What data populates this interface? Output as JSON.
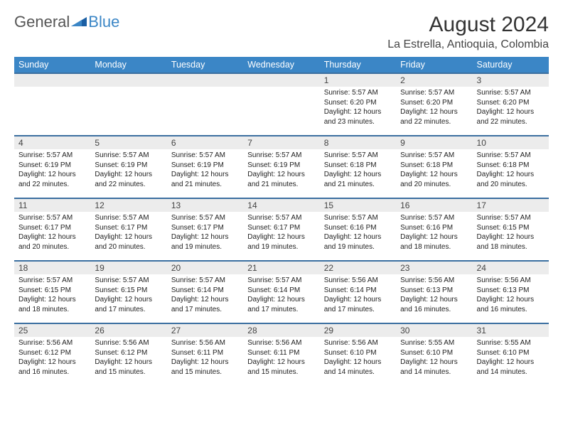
{
  "logo": {
    "general": "General",
    "blue": "Blue"
  },
  "title": "August 2024",
  "location": "La Estrella, Antioquia, Colombia",
  "colors": {
    "header_bg": "#3b86c6",
    "header_text": "#ffffff",
    "daynum_bg": "#ececec",
    "row_border": "#3b6fa0",
    "logo_gray": "#555555",
    "logo_blue": "#3b86c6",
    "body_text": "#222222"
  },
  "typography": {
    "month_title_size": 30,
    "location_size": 16,
    "header_cell_size": 12.5,
    "daynum_size": 12,
    "body_size": 10
  },
  "day_headers": [
    "Sunday",
    "Monday",
    "Tuesday",
    "Wednesday",
    "Thursday",
    "Friday",
    "Saturday"
  ],
  "weeks": [
    [
      null,
      null,
      null,
      null,
      {
        "n": "1",
        "sunrise": "Sunrise: 5:57 AM",
        "sunset": "Sunset: 6:20 PM",
        "daylight": "Daylight: 12 hours and 23 minutes."
      },
      {
        "n": "2",
        "sunrise": "Sunrise: 5:57 AM",
        "sunset": "Sunset: 6:20 PM",
        "daylight": "Daylight: 12 hours and 22 minutes."
      },
      {
        "n": "3",
        "sunrise": "Sunrise: 5:57 AM",
        "sunset": "Sunset: 6:20 PM",
        "daylight": "Daylight: 12 hours and 22 minutes."
      }
    ],
    [
      {
        "n": "4",
        "sunrise": "Sunrise: 5:57 AM",
        "sunset": "Sunset: 6:19 PM",
        "daylight": "Daylight: 12 hours and 22 minutes."
      },
      {
        "n": "5",
        "sunrise": "Sunrise: 5:57 AM",
        "sunset": "Sunset: 6:19 PM",
        "daylight": "Daylight: 12 hours and 22 minutes."
      },
      {
        "n": "6",
        "sunrise": "Sunrise: 5:57 AM",
        "sunset": "Sunset: 6:19 PM",
        "daylight": "Daylight: 12 hours and 21 minutes."
      },
      {
        "n": "7",
        "sunrise": "Sunrise: 5:57 AM",
        "sunset": "Sunset: 6:19 PM",
        "daylight": "Daylight: 12 hours and 21 minutes."
      },
      {
        "n": "8",
        "sunrise": "Sunrise: 5:57 AM",
        "sunset": "Sunset: 6:18 PM",
        "daylight": "Daylight: 12 hours and 21 minutes."
      },
      {
        "n": "9",
        "sunrise": "Sunrise: 5:57 AM",
        "sunset": "Sunset: 6:18 PM",
        "daylight": "Daylight: 12 hours and 20 minutes."
      },
      {
        "n": "10",
        "sunrise": "Sunrise: 5:57 AM",
        "sunset": "Sunset: 6:18 PM",
        "daylight": "Daylight: 12 hours and 20 minutes."
      }
    ],
    [
      {
        "n": "11",
        "sunrise": "Sunrise: 5:57 AM",
        "sunset": "Sunset: 6:17 PM",
        "daylight": "Daylight: 12 hours and 20 minutes."
      },
      {
        "n": "12",
        "sunrise": "Sunrise: 5:57 AM",
        "sunset": "Sunset: 6:17 PM",
        "daylight": "Daylight: 12 hours and 20 minutes."
      },
      {
        "n": "13",
        "sunrise": "Sunrise: 5:57 AM",
        "sunset": "Sunset: 6:17 PM",
        "daylight": "Daylight: 12 hours and 19 minutes."
      },
      {
        "n": "14",
        "sunrise": "Sunrise: 5:57 AM",
        "sunset": "Sunset: 6:17 PM",
        "daylight": "Daylight: 12 hours and 19 minutes."
      },
      {
        "n": "15",
        "sunrise": "Sunrise: 5:57 AM",
        "sunset": "Sunset: 6:16 PM",
        "daylight": "Daylight: 12 hours and 19 minutes."
      },
      {
        "n": "16",
        "sunrise": "Sunrise: 5:57 AM",
        "sunset": "Sunset: 6:16 PM",
        "daylight": "Daylight: 12 hours and 18 minutes."
      },
      {
        "n": "17",
        "sunrise": "Sunrise: 5:57 AM",
        "sunset": "Sunset: 6:15 PM",
        "daylight": "Daylight: 12 hours and 18 minutes."
      }
    ],
    [
      {
        "n": "18",
        "sunrise": "Sunrise: 5:57 AM",
        "sunset": "Sunset: 6:15 PM",
        "daylight": "Daylight: 12 hours and 18 minutes."
      },
      {
        "n": "19",
        "sunrise": "Sunrise: 5:57 AM",
        "sunset": "Sunset: 6:15 PM",
        "daylight": "Daylight: 12 hours and 17 minutes."
      },
      {
        "n": "20",
        "sunrise": "Sunrise: 5:57 AM",
        "sunset": "Sunset: 6:14 PM",
        "daylight": "Daylight: 12 hours and 17 minutes."
      },
      {
        "n": "21",
        "sunrise": "Sunrise: 5:57 AM",
        "sunset": "Sunset: 6:14 PM",
        "daylight": "Daylight: 12 hours and 17 minutes."
      },
      {
        "n": "22",
        "sunrise": "Sunrise: 5:56 AM",
        "sunset": "Sunset: 6:14 PM",
        "daylight": "Daylight: 12 hours and 17 minutes."
      },
      {
        "n": "23",
        "sunrise": "Sunrise: 5:56 AM",
        "sunset": "Sunset: 6:13 PM",
        "daylight": "Daylight: 12 hours and 16 minutes."
      },
      {
        "n": "24",
        "sunrise": "Sunrise: 5:56 AM",
        "sunset": "Sunset: 6:13 PM",
        "daylight": "Daylight: 12 hours and 16 minutes."
      }
    ],
    [
      {
        "n": "25",
        "sunrise": "Sunrise: 5:56 AM",
        "sunset": "Sunset: 6:12 PM",
        "daylight": "Daylight: 12 hours and 16 minutes."
      },
      {
        "n": "26",
        "sunrise": "Sunrise: 5:56 AM",
        "sunset": "Sunset: 6:12 PM",
        "daylight": "Daylight: 12 hours and 15 minutes."
      },
      {
        "n": "27",
        "sunrise": "Sunrise: 5:56 AM",
        "sunset": "Sunset: 6:11 PM",
        "daylight": "Daylight: 12 hours and 15 minutes."
      },
      {
        "n": "28",
        "sunrise": "Sunrise: 5:56 AM",
        "sunset": "Sunset: 6:11 PM",
        "daylight": "Daylight: 12 hours and 15 minutes."
      },
      {
        "n": "29",
        "sunrise": "Sunrise: 5:56 AM",
        "sunset": "Sunset: 6:10 PM",
        "daylight": "Daylight: 12 hours and 14 minutes."
      },
      {
        "n": "30",
        "sunrise": "Sunrise: 5:55 AM",
        "sunset": "Sunset: 6:10 PM",
        "daylight": "Daylight: 12 hours and 14 minutes."
      },
      {
        "n": "31",
        "sunrise": "Sunrise: 5:55 AM",
        "sunset": "Sunset: 6:10 PM",
        "daylight": "Daylight: 12 hours and 14 minutes."
      }
    ]
  ]
}
